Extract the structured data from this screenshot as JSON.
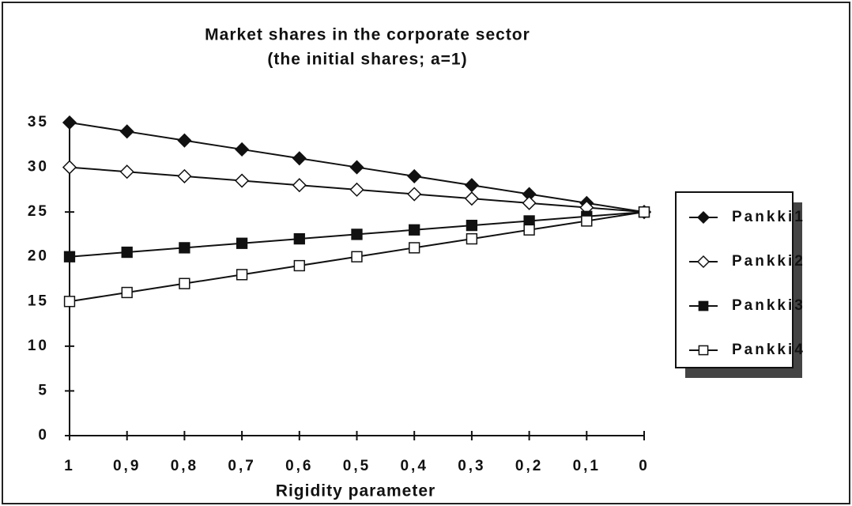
{
  "chart_data": {
    "type": "line",
    "title": "Market shares in the corporate sector",
    "subtitle": "(the initial shares; a=1)",
    "x_label": "Rigidity parameter",
    "categories": [
      "1",
      "0,9",
      "0,8",
      "0,7",
      "0,6",
      "0,5",
      "0,4",
      "0,3",
      "0,2",
      "0,1",
      "0"
    ],
    "series": [
      {
        "name": "Pankki1",
        "color": "#111111",
        "marker": "diamond",
        "filled": true,
        "values": [
          35,
          34,
          33,
          32,
          31,
          30,
          29,
          28,
          27,
          26,
          25
        ]
      },
      {
        "name": "Pankki2",
        "color": "#111111",
        "marker": "diamond",
        "filled": false,
        "values": [
          30,
          29.5,
          29,
          28.5,
          28,
          27.5,
          27,
          26.5,
          26,
          25.5,
          25
        ]
      },
      {
        "name": "Pankki3",
        "color": "#111111",
        "marker": "square",
        "filled": true,
        "values": [
          20,
          20.5,
          21,
          21.5,
          22,
          22.5,
          23,
          23.5,
          24,
          24.5,
          25
        ]
      },
      {
        "name": "Pankki4",
        "color": "#111111",
        "marker": "square",
        "filled": false,
        "values": [
          15,
          16,
          17,
          18,
          19,
          20,
          21,
          22,
          23,
          24,
          25
        ]
      }
    ],
    "ylim": [
      0,
      35
    ],
    "yticks": [
      0,
      5,
      10,
      15,
      20,
      25,
      30,
      35
    ],
    "grid": false,
    "legend": "right"
  }
}
